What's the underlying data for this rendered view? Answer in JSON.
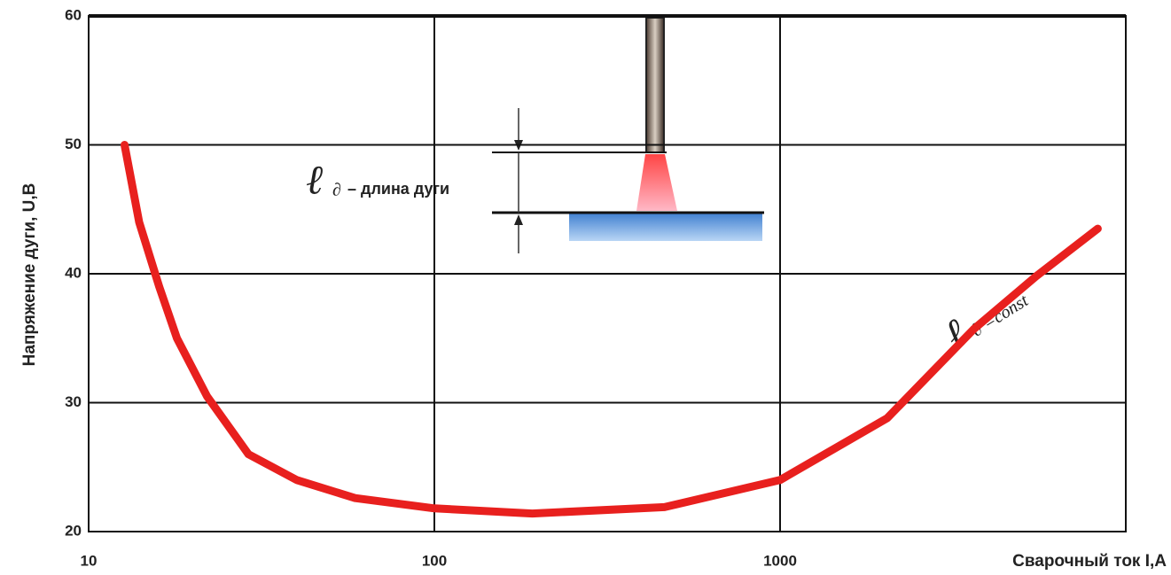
{
  "chart_data": {
    "type": "line",
    "x_label": "Сварочный ток I,А",
    "y_label": "Напряжение дуги, U,В",
    "x": [
      12.7,
      14,
      16,
      18,
      22,
      29,
      40,
      59,
      100,
      192,
      463,
      1000,
      2040,
      3630,
      5500,
      8300
    ],
    "values": [
      50,
      44,
      39,
      35,
      30.5,
      26,
      24,
      22.6,
      21.8,
      21.4,
      21.9,
      24,
      28.8,
      35.7,
      39.8,
      43.5
    ],
    "color": "#e8201e",
    "x_log": true,
    "xlim": [
      10,
      10000
    ],
    "xticks": [
      10,
      100,
      1000
    ],
    "ylim": [
      20,
      60
    ],
    "yticks": [
      20,
      30,
      40,
      50,
      60
    ],
    "grid": true,
    "annotations": [
      "ℓ",
      "∂",
      "– длина дуги",
      "ℓ",
      "∂ =const"
    ]
  }
}
